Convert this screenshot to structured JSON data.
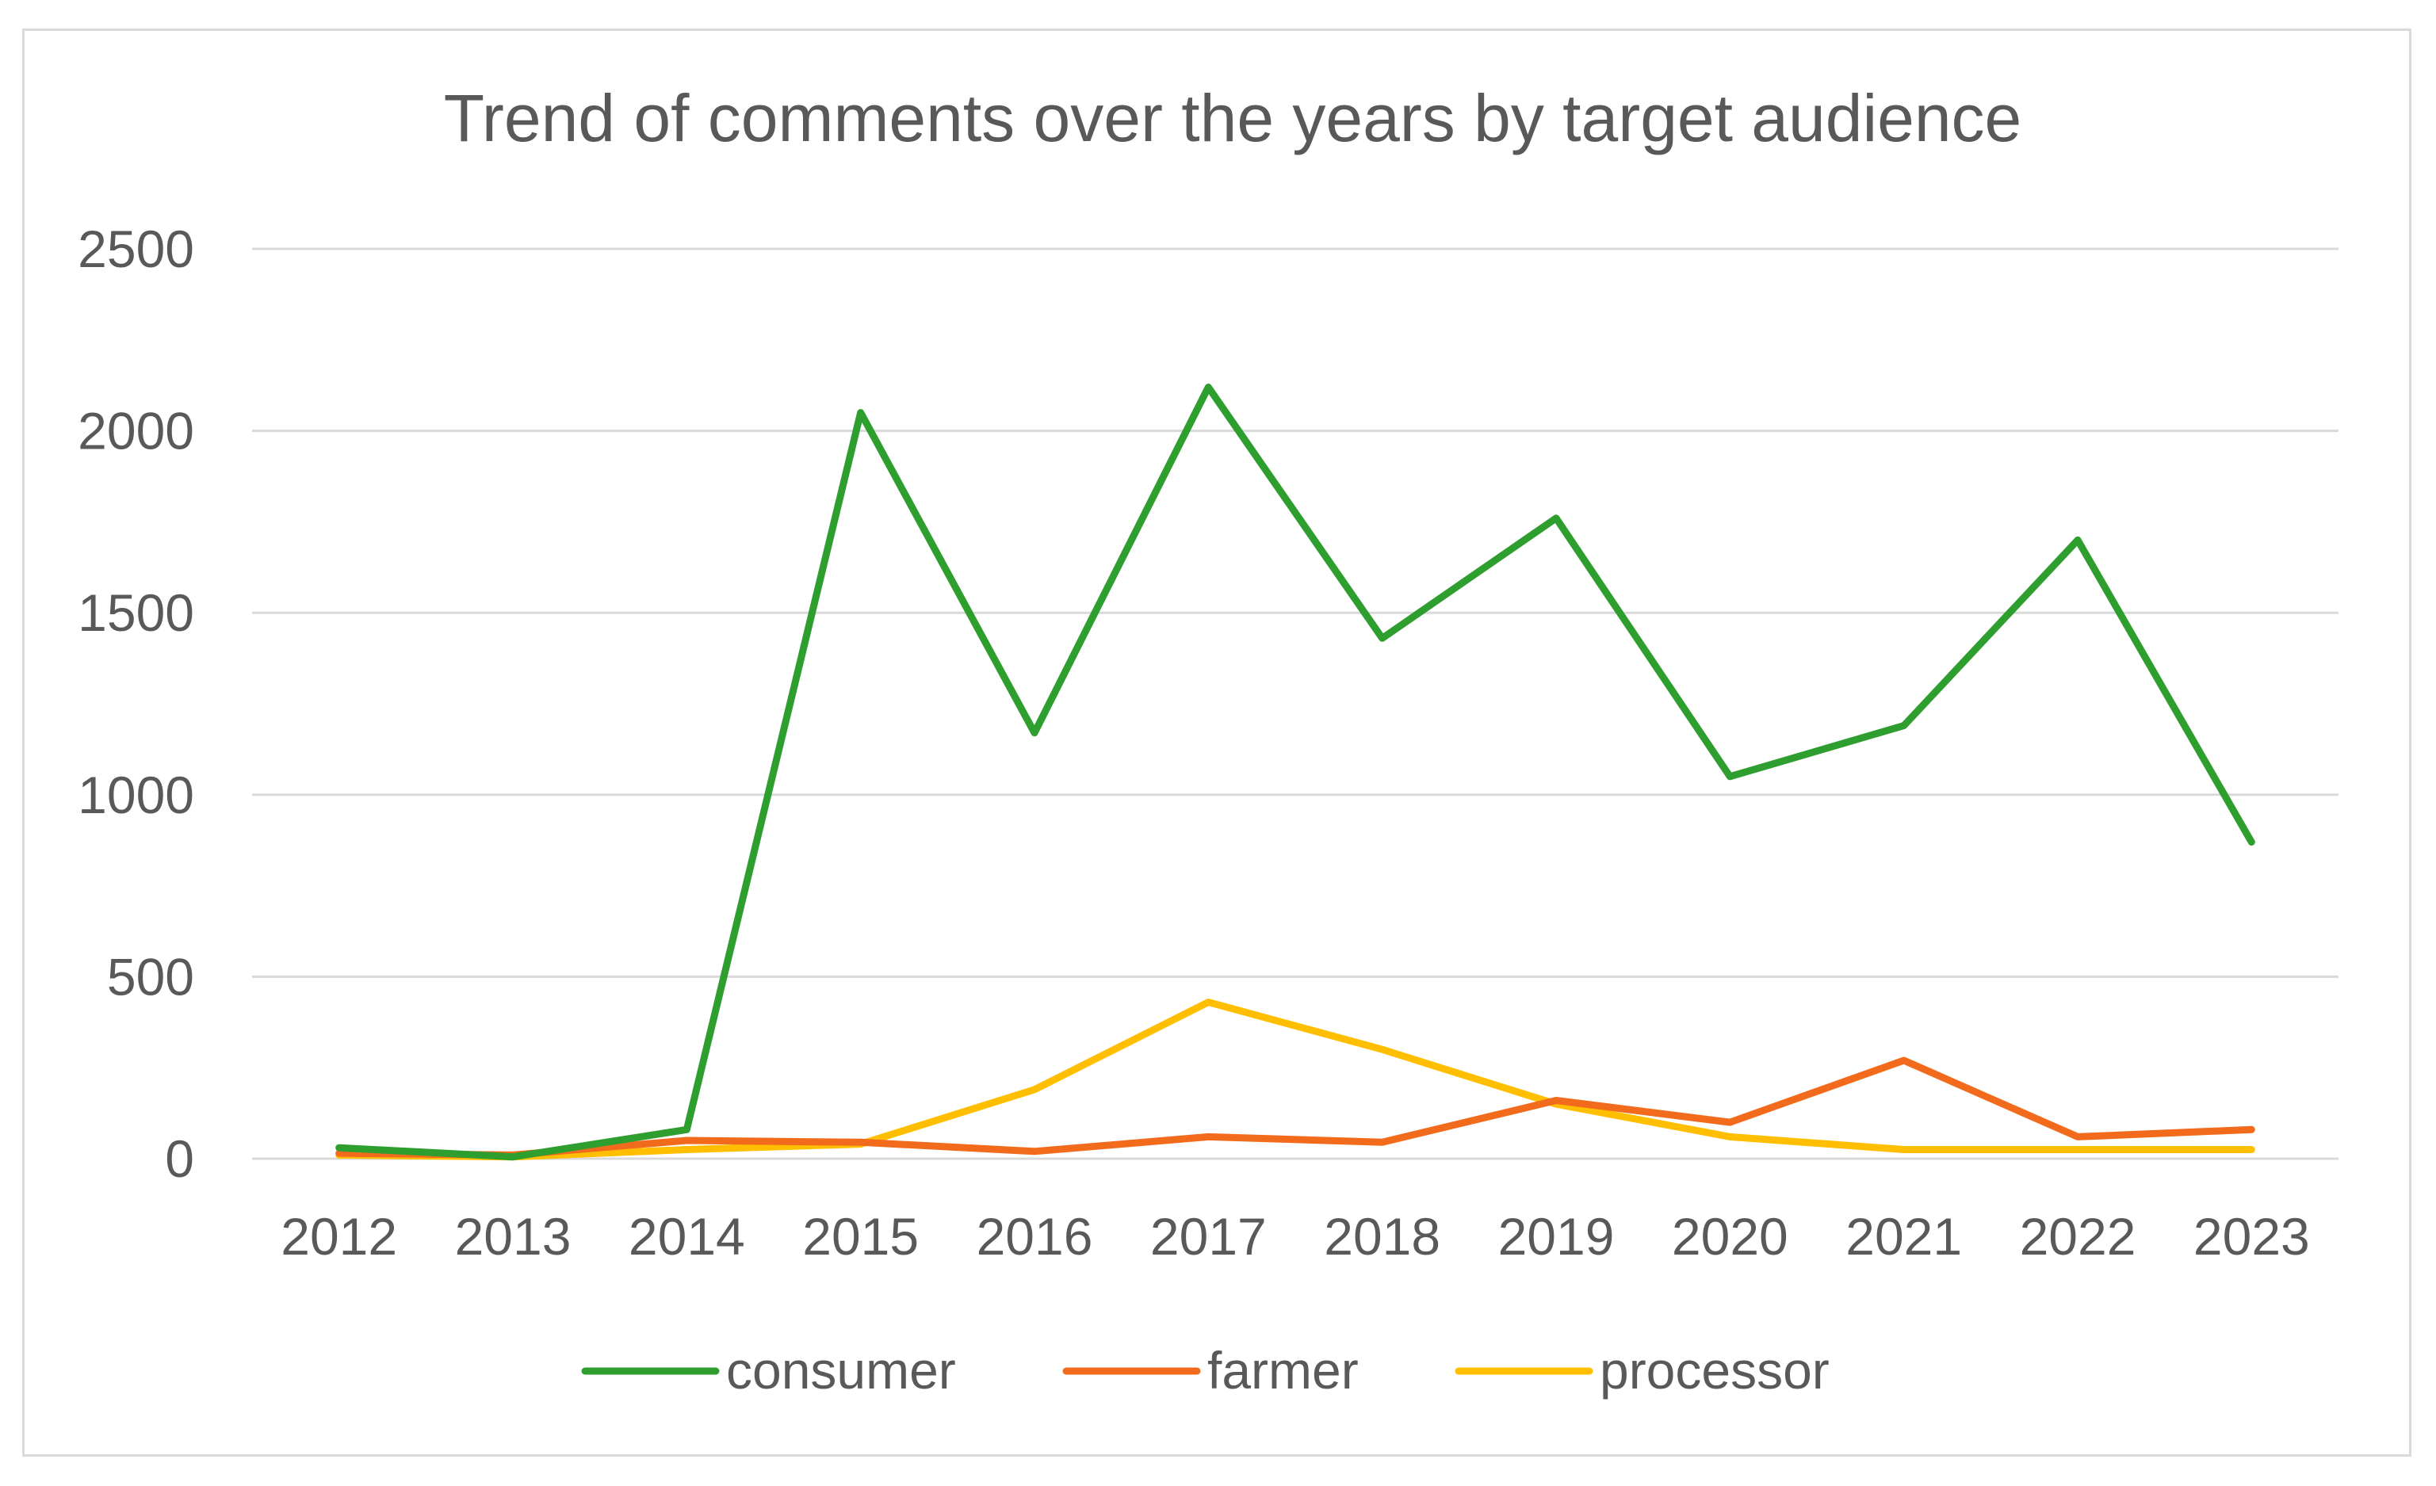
{
  "chart_data": {
    "type": "line",
    "title": "Trend of comments over the years by target audience",
    "xlabel": "",
    "ylabel": "",
    "categories": [
      "2012",
      "2013",
      "2014",
      "2015",
      "2016",
      "2017",
      "2018",
      "2019",
      "2020",
      "2021",
      "2022",
      "2023"
    ],
    "y_ticks": [
      "0",
      "500",
      "1000",
      "1500",
      "2000",
      "2500"
    ],
    "ylim": [
      0,
      2500
    ],
    "grid": true,
    "legend_position": "bottom",
    "series": [
      {
        "name": "consumer",
        "color": "#2e9e2e",
        "values": [
          30,
          5,
          80,
          2050,
          1170,
          2120,
          1430,
          1760,
          1050,
          1190,
          1700,
          870
        ]
      },
      {
        "name": "farmer",
        "color": "#f26b1d",
        "values": [
          15,
          10,
          50,
          45,
          20,
          60,
          45,
          160,
          100,
          270,
          60,
          80
        ]
      },
      {
        "name": "processor",
        "color": "#ffbf00",
        "values": [
          10,
          5,
          25,
          40,
          190,
          430,
          300,
          150,
          60,
          25,
          25,
          25
        ]
      }
    ]
  }
}
